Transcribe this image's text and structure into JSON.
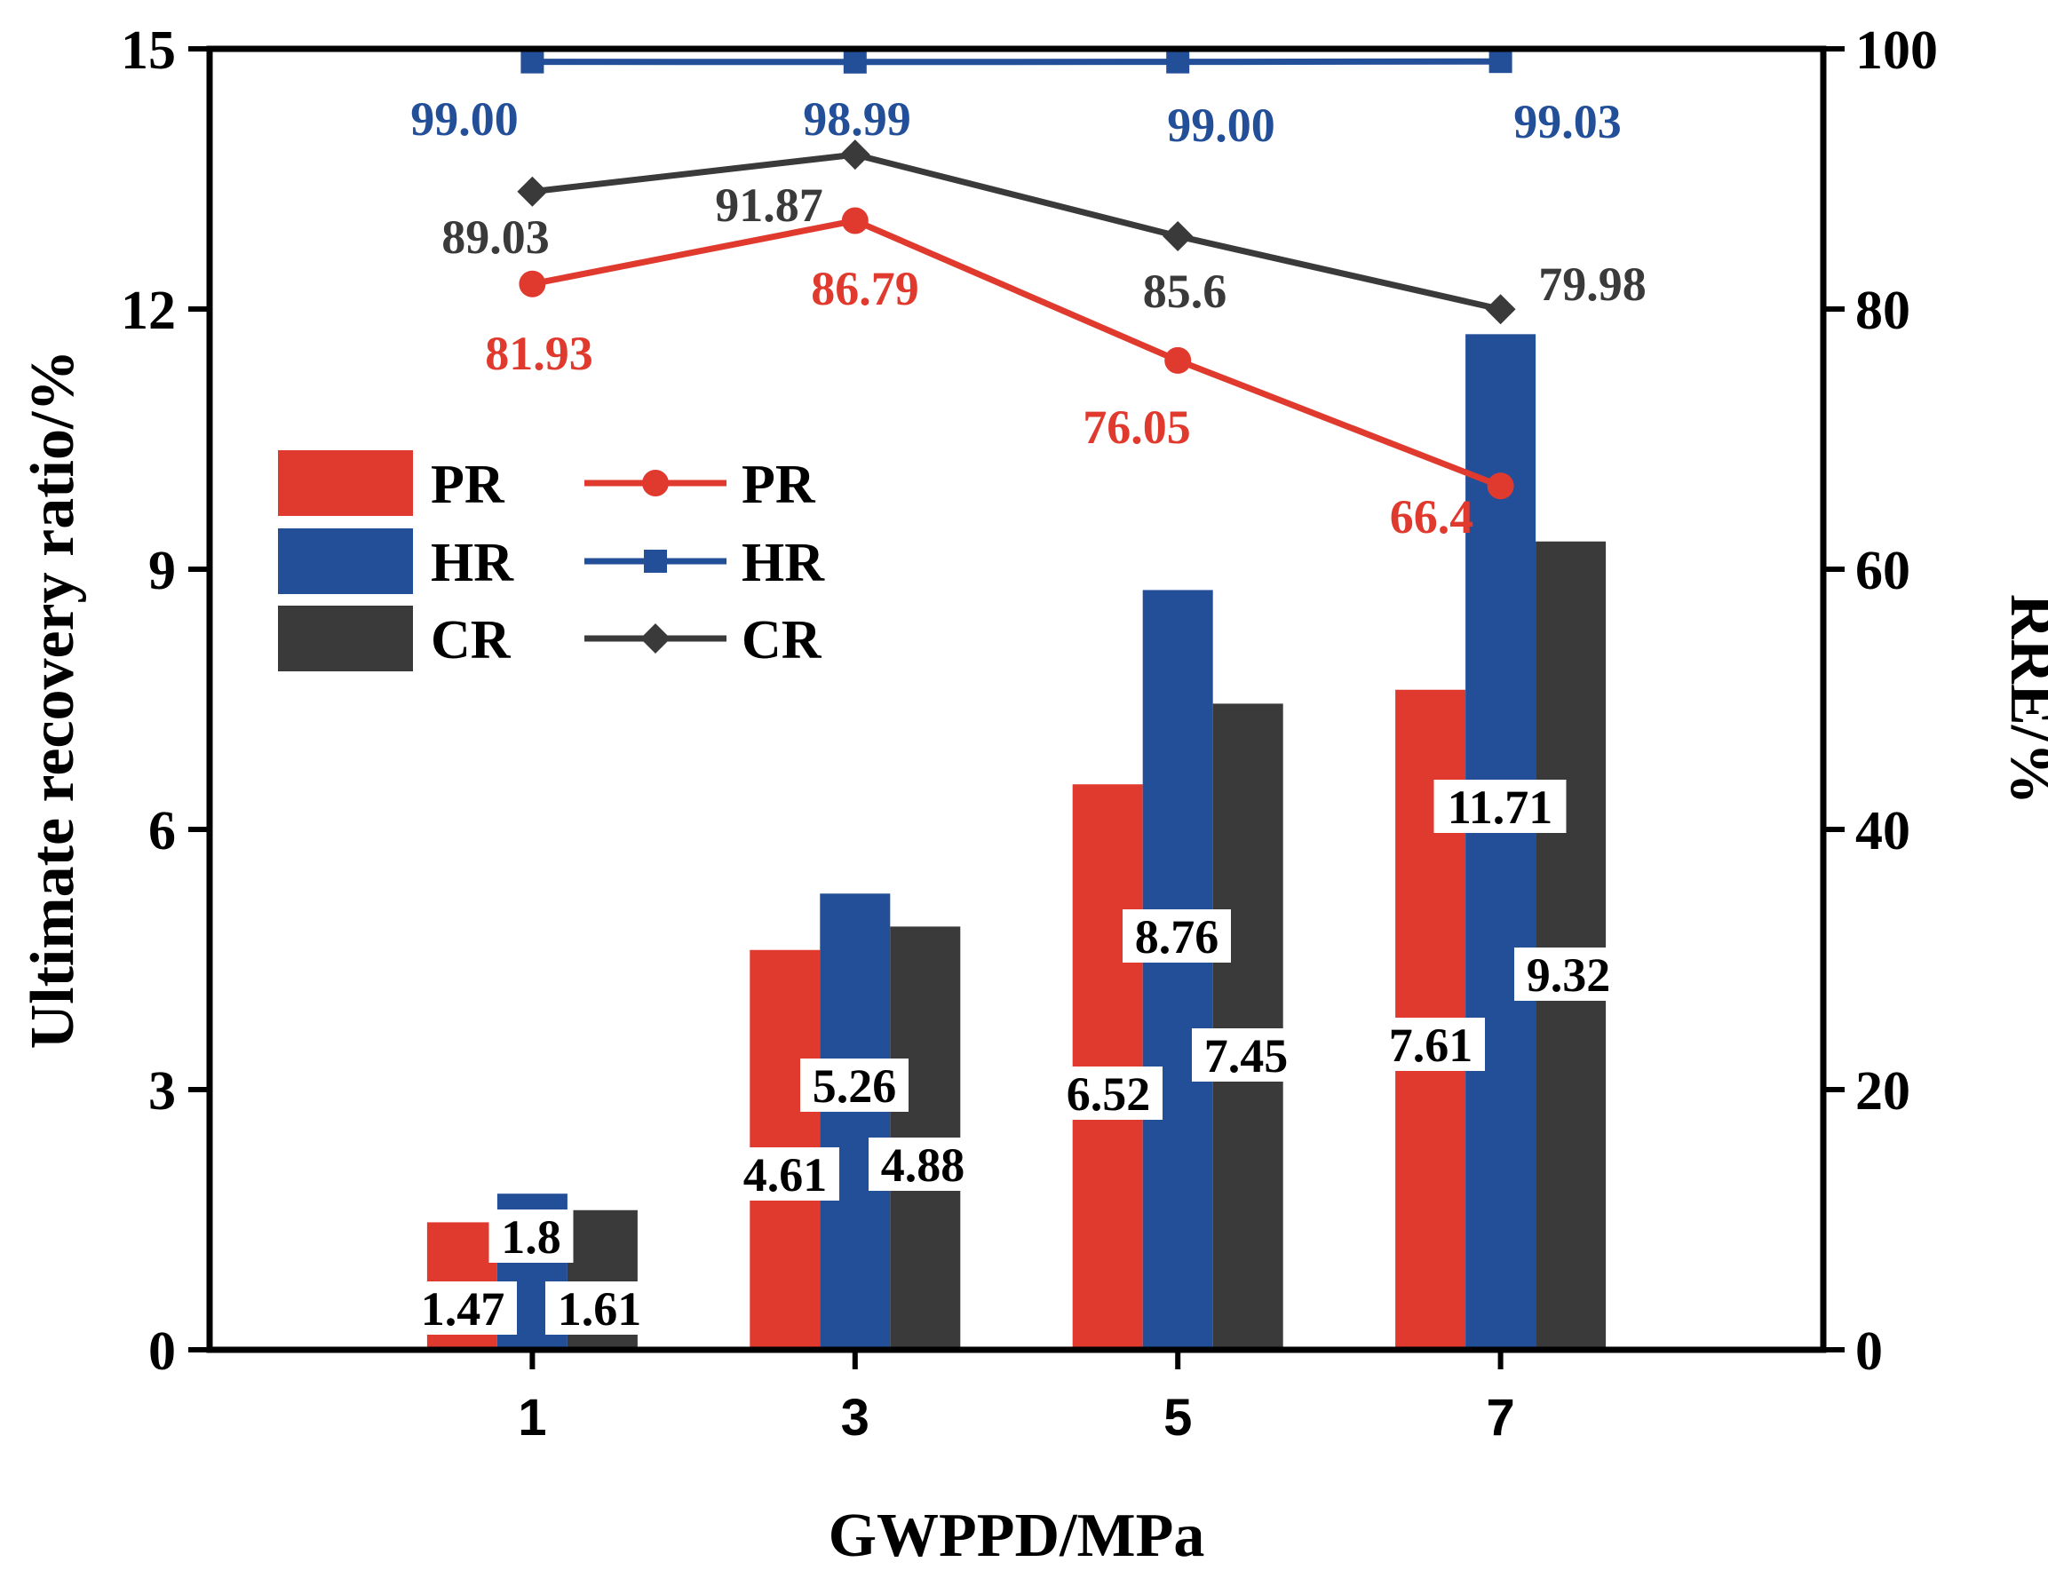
{
  "chart_data": {
    "type": "bar",
    "xlabel": "GWPPD/MPa",
    "ylabel_left": "Ultimate recovery ratio/%",
    "ylabel_right": "RRE/%",
    "categories": [
      "1",
      "3",
      "5",
      "7"
    ],
    "ylim_left": [
      0,
      15
    ],
    "yticks_left": [
      "0",
      "3",
      "6",
      "9",
      "12",
      "15"
    ],
    "ylim_right": [
      0,
      100
    ],
    "yticks_right": [
      "0",
      "20",
      "40",
      "60",
      "80",
      "100"
    ],
    "grid": false,
    "legend_position": "upper-left",
    "colors": {
      "PR": "#e03a2e",
      "HR": "#234f99",
      "CR": "#3a3a3a"
    },
    "bar_series": [
      {
        "name": "PR",
        "values": [
          1.47,
          4.61,
          6.52,
          7.61
        ],
        "labels": [
          "1.47",
          "4.61",
          "6.52",
          "7.61"
        ]
      },
      {
        "name": "HR",
        "values": [
          1.8,
          5.26,
          8.76,
          11.71
        ],
        "labels": [
          "1.8",
          "5.26",
          "8.76",
          "11.71"
        ]
      },
      {
        "name": "CR",
        "values": [
          1.61,
          4.88,
          7.45,
          9.32
        ],
        "labels": [
          "1.61",
          "4.88",
          "7.45",
          "9.32"
        ]
      }
    ],
    "line_series": [
      {
        "name": "PR",
        "marker": "circle",
        "values": [
          81.93,
          86.79,
          76.05,
          66.4
        ],
        "labels": [
          "81.93",
          "86.79",
          "76.05",
          "66.4"
        ]
      },
      {
        "name": "HR",
        "marker": "square",
        "values": [
          99.0,
          98.99,
          99.0,
          99.03
        ],
        "labels": [
          "99.00",
          "98.99",
          "99.00",
          "99.03"
        ]
      },
      {
        "name": "CR",
        "marker": "diamond",
        "values": [
          89.03,
          91.87,
          85.6,
          79.98
        ],
        "labels": [
          "89.03",
          "91.87",
          "85.6",
          "79.98"
        ]
      }
    ]
  }
}
